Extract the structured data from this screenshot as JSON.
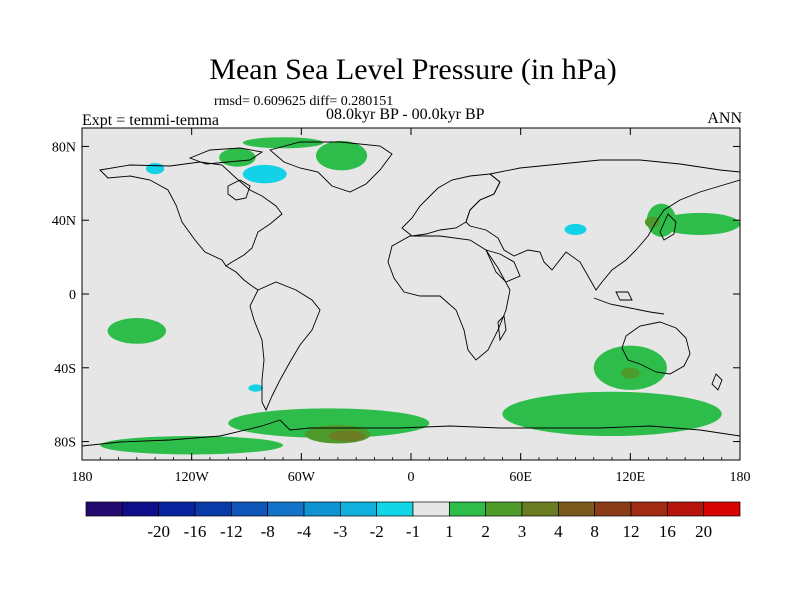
{
  "title": "Mean Sea Level Pressure (in hPa)",
  "stats": "rmsd= 0.609625 diff= 0.280151",
  "period": "08.0kyr BP - 00.0kyr BP",
  "experiment": "Expt = temmi-temma",
  "season": "ANN",
  "map": {
    "projection": "cylindrical-equidistant",
    "lon_range": [
      -180,
      180
    ],
    "lat_range": [
      -90,
      90
    ],
    "background_color": "#e6e6e6",
    "lat_ticks": [
      {
        "value": 80,
        "label": "80N"
      },
      {
        "value": 40,
        "label": "40N"
      },
      {
        "value": 0,
        "label": "0"
      },
      {
        "value": -40,
        "label": "40S"
      },
      {
        "value": -80,
        "label": "80S"
      }
    ],
    "lon_ticks": [
      {
        "value": -180,
        "label": "180"
      },
      {
        "value": -120,
        "label": "120W"
      },
      {
        "value": -60,
        "label": "60W"
      },
      {
        "value": 0,
        "label": "0"
      },
      {
        "value": 60,
        "label": "60E"
      },
      {
        "value": 120,
        "label": "120E"
      },
      {
        "value": 180,
        "label": "180"
      }
    ]
  },
  "anomaly_regions": [
    {
      "name": "north-pacific-positive",
      "level": 2,
      "color": "#2ebd4b",
      "lon": 158,
      "lat": 38,
      "rlon": 22,
      "rlat": 6
    },
    {
      "name": "japan-positive",
      "level": 2,
      "color": "#2ebd4b",
      "lon": 137,
      "lat": 40,
      "rlon": 8,
      "rlat": 9
    },
    {
      "name": "korea-positive",
      "level": 3,
      "color": "#4e9a2a",
      "lon": 132,
      "lat": 39,
      "rlon": 4,
      "rlat": 3
    },
    {
      "name": "tibet-negative",
      "level": -2,
      "color": "#13d1e6",
      "lon": 90,
      "lat": 35,
      "rlon": 6,
      "rlat": 3
    },
    {
      "name": "greenland-positive",
      "level": 2,
      "color": "#2ebd4b",
      "lon": -38,
      "lat": 75,
      "rlon": 14,
      "rlat": 8
    },
    {
      "name": "canada-arctic-positive",
      "level": 2,
      "color": "#2ebd4b",
      "lon": -95,
      "lat": 74,
      "rlon": 10,
      "rlat": 5
    },
    {
      "name": "arctic-islands-positive",
      "level": 2,
      "color": "#2ebd4b",
      "lon": -70,
      "lat": 82,
      "rlon": 22,
      "rlat": 3
    },
    {
      "name": "hudson-negative",
      "level": -2,
      "color": "#13d1e6",
      "lon": -80,
      "lat": 65,
      "rlon": 12,
      "rlat": 5
    },
    {
      "name": "alaska-negative",
      "level": -2,
      "color": "#13d1e6",
      "lon": -140,
      "lat": 68,
      "rlon": 5,
      "rlat": 3
    },
    {
      "name": "southeast-pacific-positive",
      "level": 2,
      "color": "#2ebd4b",
      "lon": -150,
      "lat": -20,
      "rlon": 16,
      "rlat": 7
    },
    {
      "name": "south-pacific-negative",
      "level": -2,
      "color": "#13d1e6",
      "lon": -85,
      "lat": -51,
      "rlon": 4,
      "rlat": 2
    },
    {
      "name": "southern-ocean-positive",
      "level": 2,
      "color": "#2ebd4b",
      "lon": -45,
      "lat": -70,
      "rlon": 55,
      "rlat": 8
    },
    {
      "name": "antarctic-coast-positive",
      "level": 2,
      "color": "#2ebd4b",
      "lon": -120,
      "lat": -82,
      "rlon": 50,
      "rlat": 5
    },
    {
      "name": "weddell-positive",
      "level": 3,
      "color": "#4e9a2a",
      "lon": -40,
      "lat": -76,
      "rlon": 18,
      "rlat": 5
    },
    {
      "name": "weddell-core-positive",
      "level": 4,
      "color": "#6b7d23",
      "lon": -35,
      "lat": -77,
      "rlon": 10,
      "rlat": 3
    },
    {
      "name": "indian-ocean-positive",
      "level": 2,
      "color": "#2ebd4b",
      "lon": 110,
      "lat": -65,
      "rlon": 60,
      "rlat": 12
    },
    {
      "name": "australia-south-positive",
      "level": 2,
      "color": "#2ebd4b",
      "lon": 120,
      "lat": -40,
      "rlon": 20,
      "rlat": 12
    },
    {
      "name": "australia-south-core",
      "level": 3,
      "color": "#4e9a2a",
      "lon": 120,
      "lat": -43,
      "rlon": 5,
      "rlat": 3
    }
  ],
  "legend": {
    "colors": [
      "#220a6e",
      "#0f0d8a",
      "#07239e",
      "#0a3aa8",
      "#0f56b8",
      "#1373c8",
      "#1093d3",
      "#11b0dc",
      "#12d6e8",
      "#e6e6e6",
      "#2ebd4b",
      "#4e9a2a",
      "#6b7d23",
      "#7a5a1e",
      "#8a3c18",
      "#a02a12",
      "#b5150c",
      "#d80404"
    ],
    "labels": [
      "-20",
      "-16",
      "-12",
      "-8",
      "-4",
      "-3",
      "-2",
      "-1",
      "1",
      "2",
      "3",
      "4",
      "8",
      "12",
      "16",
      "20"
    ]
  }
}
